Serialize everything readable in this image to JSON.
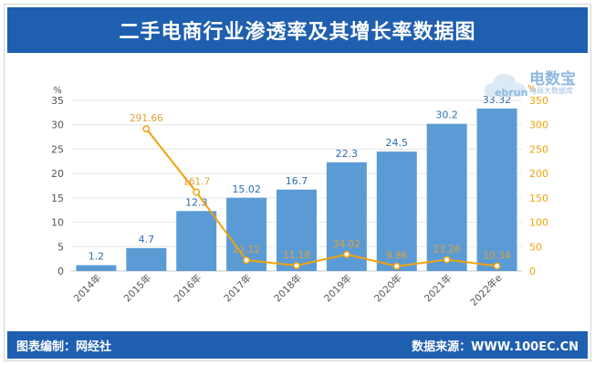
{
  "header": {
    "title": "二手电商行业渗透率及其增长率数据图"
  },
  "footer": {
    "left": "图表编制：网经社",
    "right": "数据来源：WWW.100EC.CN"
  },
  "watermark": {
    "logo_text": "ebrun",
    "brand": "电数宝",
    "sub": "电商大数据库"
  },
  "colors": {
    "title_bar": "#1f5fb0",
    "bar": "#5b9bd5",
    "line": "#f0a30a",
    "bar_label": "#2e6db4",
    "line_label": "#e0a13a"
  },
  "chart_data": {
    "type": "bar",
    "title": "二手电商行业渗透率及其增长率数据图",
    "categories": [
      "2014年",
      "2015年",
      "2016年",
      "2017年",
      "2018年",
      "2019年",
      "2020年",
      "2021年",
      "2022年e"
    ],
    "series": [
      {
        "name": "渗透率",
        "type": "bar",
        "axis": "left",
        "values": [
          1.2,
          4.7,
          12.3,
          15.02,
          16.7,
          22.3,
          24.5,
          30.2,
          33.32
        ]
      },
      {
        "name": "增长率",
        "type": "line",
        "axis": "right",
        "values": [
          null,
          291.66,
          161.7,
          22.12,
          11.18,
          34.02,
          9.86,
          23.26,
          10.34
        ]
      }
    ],
    "y_left": {
      "label": "%",
      "ylim": [
        0,
        35
      ],
      "ticks": [
        0,
        5,
        10,
        15,
        20,
        25,
        30,
        35
      ]
    },
    "y_right": {
      "label": "%",
      "ylim": [
        0,
        350
      ],
      "ticks": [
        0,
        50,
        100,
        150,
        200,
        250,
        300,
        350
      ]
    },
    "grid": true,
    "bar_labels": [
      "1.2",
      "4.7",
      "12.3",
      "15.02",
      "16.7",
      "22.3",
      "24.5",
      "30.2",
      "33.32"
    ],
    "line_labels": [
      "",
      "291.66",
      "161.7",
      "22.12",
      "11.18",
      "34.02",
      "9.86",
      "23.26",
      "10.34"
    ]
  }
}
